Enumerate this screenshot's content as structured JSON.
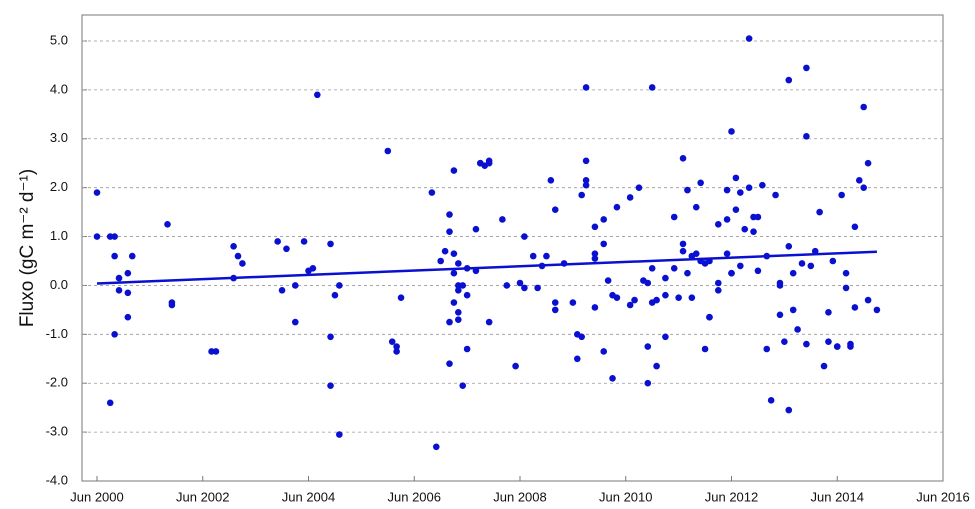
{
  "chart_data": {
    "type": "scatter",
    "ylabel": "Fluxo (gC m⁻² d⁻¹)",
    "color": "#0a10d0",
    "grid": true,
    "xlim": [
      "2000-06",
      "2016-06"
    ],
    "xticks": [
      {
        "value": "2000-06",
        "label": "Jun 2000"
      },
      {
        "value": "2002-06",
        "label": "Jun 2002"
      },
      {
        "value": "2004-06",
        "label": "Jun 2004"
      },
      {
        "value": "2006-06",
        "label": "Jun 2006"
      },
      {
        "value": "2008-06",
        "label": "Jun 2008"
      },
      {
        "value": "2010-06",
        "label": "Jun 2010"
      },
      {
        "value": "2012-06",
        "label": "Jun 2012"
      },
      {
        "value": "2014-06",
        "label": "Jun 2014"
      },
      {
        "value": "2016-06",
        "label": "Jun 2016"
      }
    ],
    "ylim": [
      -4,
      5
    ],
    "yticks": [
      {
        "value": 5,
        "label": "5.0"
      },
      {
        "value": 4,
        "label": "4.0"
      },
      {
        "value": 3,
        "label": "3.0"
      },
      {
        "value": 2,
        "label": "2.0"
      },
      {
        "value": 1,
        "label": "1.0"
      },
      {
        "value": 0,
        "label": "0.0"
      },
      {
        "value": -1,
        "label": "-1.0"
      },
      {
        "value": -2,
        "label": "-2.0"
      },
      {
        "value": -3,
        "label": "-3.0"
      },
      {
        "value": -4,
        "label": "-4.0"
      }
    ],
    "x": [
      "2000-06",
      "2000-06",
      "2000-09",
      "2000-10",
      "2000-10",
      "2000-10",
      "2000-09",
      "2000-11",
      "2000-11",
      "2001-01",
      "2001-01",
      "2001-01",
      "2001-02",
      "2001-10",
      "2001-11",
      "2001-11",
      "2002-08",
      "2002-09",
      "2003-01",
      "2003-01",
      "2003-02",
      "2003-03",
      "2003-11",
      "2003-12",
      "2004-01",
      "2004-03",
      "2004-03",
      "2004-05",
      "2004-06",
      "2004-07",
      "2004-08",
      "2004-11",
      "2004-11",
      "2004-11",
      "2004-12",
      "2005-01",
      "2005-01",
      "2005-12",
      "2006-01",
      "2006-02",
      "2006-02",
      "2006-03",
      "2006-10",
      "2006-11",
      "2006-12",
      "2007-01",
      "2007-02",
      "2007-02",
      "2007-02",
      "2007-02",
      "2007-03",
      "2007-03",
      "2007-03",
      "2007-03",
      "2007-04",
      "2007-04",
      "2007-04",
      "2007-04",
      "2007-04",
      "2007-05",
      "2007-05",
      "2007-06",
      "2007-06",
      "2007-06",
      "2007-08",
      "2007-08",
      "2007-09",
      "2007-09",
      "2007-10",
      "2007-11",
      "2007-11",
      "2007-11",
      "2008-02",
      "2008-03",
      "2008-05",
      "2008-06",
      "2008-07",
      "2008-07",
      "2008-09",
      "2008-10",
      "2008-11",
      "2008-12",
      "2009-01",
      "2009-02",
      "2009-02",
      "2009-02",
      "2009-04",
      "2009-06",
      "2009-07",
      "2009-07",
      "2009-08",
      "2009-08",
      "2009-09",
      "2009-09",
      "2009-09",
      "2009-09",
      "2009-11",
      "2009-11",
      "2009-11",
      "2009-11",
      "2010-01",
      "2010-01",
      "2010-01",
      "2010-02",
      "2010-03",
      "2010-03",
      "2010-04",
      "2010-04",
      "2010-07",
      "2010-07",
      "2010-08",
      "2010-09",
      "2010-10",
      "2010-11",
      "2010-11",
      "2010-11",
      "2010-12",
      "2010-12",
      "2010-12",
      "2011-01",
      "2011-01",
      "2011-03",
      "2011-03",
      "2011-03",
      "2011-05",
      "2011-05",
      "2011-06",
      "2011-07",
      "2011-07",
      "2011-07",
      "2011-08",
      "2011-08",
      "2011-09",
      "2011-09",
      "2011-10",
      "2011-10",
      "2011-11",
      "2011-11",
      "2011-12",
      "2011-12",
      "2012-01",
      "2012-01",
      "2012-01",
      "2012-03",
      "2012-03",
      "2012-03",
      "2012-05",
      "2012-05",
      "2012-05",
      "2012-06",
      "2012-06",
      "2012-06",
      "2012-07",
      "2012-07",
      "2012-08",
      "2012-08",
      "2012-09",
      "2012-10",
      "2012-10",
      "2012-11",
      "2012-11",
      "2012-12",
      "2012-12",
      "2013-01",
      "2013-02",
      "2013-02",
      "2013-03",
      "2013-04",
      "2013-05",
      "2013-05",
      "2013-05",
      "2013-06",
      "2013-07",
      "2013-07",
      "2013-07",
      "2013-08",
      "2013-08",
      "2013-09",
      "2013-10",
      "2013-11",
      "2013-11",
      "2013-11",
      "2013-12",
      "2014-01",
      "2014-02",
      "2014-03",
      "2014-04",
      "2014-04",
      "2014-05",
      "2014-06",
      "2014-06",
      "2014-07",
      "2014-08",
      "2014-08",
      "2014-09",
      "2014-09",
      "2014-10",
      "2014-10",
      "2014-11",
      "2014-12",
      "2014-12",
      "2015-01",
      "2015-01",
      "2015-03"
    ],
    "values": [
      1.0,
      1.9,
      1.0,
      1.0,
      0.6,
      -1.0,
      -2.4,
      0.15,
      -0.1,
      0.25,
      -0.15,
      -0.65,
      0.6,
      1.25,
      -0.4,
      -0.35,
      -1.35,
      -1.35,
      0.15,
      0.8,
      0.6,
      0.45,
      0.9,
      -0.1,
      0.75,
      0.0,
      -0.75,
      0.9,
      0.3,
      0.35,
      3.9,
      0.85,
      -1.05,
      -2.05,
      -0.2,
      0.0,
      -3.05,
      2.75,
      -1.15,
      -1.35,
      -1.25,
      -0.25,
      1.9,
      -3.3,
      0.5,
      0.7,
      1.1,
      1.45,
      -0.75,
      -1.6,
      0.65,
      -0.35,
      0.25,
      2.35,
      -0.1,
      0.45,
      -0.55,
      0.0,
      -0.7,
      -2.05,
      0.0,
      -1.3,
      -0.2,
      0.35,
      1.15,
      0.3,
      2.5,
      2.5,
      2.45,
      2.5,
      2.55,
      -0.75,
      1.35,
      0.0,
      -1.65,
      0.05,
      -0.05,
      1.0,
      0.6,
      -0.05,
      0.4,
      0.6,
      2.15,
      1.55,
      -0.35,
      -0.5,
      0.45,
      -0.35,
      -1.0,
      -1.5,
      -1.05,
      1.85,
      4.05,
      2.05,
      2.15,
      2.55,
      0.55,
      -0.45,
      1.2,
      0.65,
      0.85,
      1.35,
      -1.35,
      0.1,
      -0.2,
      -1.9,
      1.6,
      -0.25,
      -0.4,
      1.8,
      -0.3,
      2.0,
      0.1,
      -1.25,
      0.05,
      -2.0,
      4.05,
      0.35,
      -0.35,
      -0.3,
      -1.65,
      0.15,
      -1.05,
      -0.2,
      1.4,
      0.35,
      -0.25,
      2.6,
      0.7,
      0.85,
      1.95,
      0.25,
      -0.25,
      0.6,
      0.65,
      1.6,
      2.1,
      0.5,
      -1.3,
      0.45,
      0.5,
      -0.65,
      -0.65,
      1.25,
      0.05,
      -0.1,
      1.35,
      1.95,
      0.65,
      0.25,
      3.15,
      0.25,
      2.2,
      1.55,
      1.9,
      0.4,
      1.15,
      2.0,
      5.05,
      1.1,
      1.4,
      1.4,
      0.3,
      2.05,
      -1.3,
      0.6,
      -2.35,
      1.85,
      0.05,
      0.0,
      -0.6,
      -1.15,
      0.8,
      -2.55,
      4.2,
      -0.5,
      0.25,
      -0.9,
      0.45,
      4.45,
      -1.2,
      3.05,
      0.4,
      0.7,
      1.5,
      -1.65,
      -0.55,
      -1.15,
      0.5,
      -1.25,
      -1.25,
      1.85,
      0.25,
      -0.05,
      -1.2,
      -1.25,
      1.2,
      -0.45,
      2.15,
      2.0,
      3.65,
      2.5,
      -0.3,
      -0.5
    ],
    "trend": {
      "x": [
        "2000-06",
        "2015-03"
      ],
      "values": [
        0.04,
        0.69
      ]
    }
  }
}
